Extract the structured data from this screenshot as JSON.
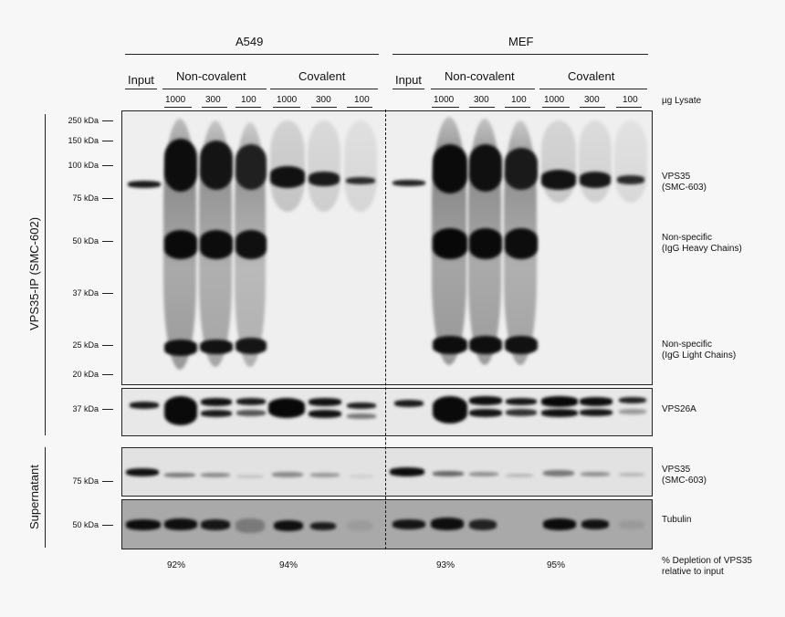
{
  "groups": {
    "a549": "A549",
    "mef": "MEF"
  },
  "conditions": {
    "input": "Input",
    "noncovalent": "Non-covalent",
    "covalent": "Covalent"
  },
  "amounts": [
    "1000",
    "300",
    "100"
  ],
  "amount_unit": "µg Lysate",
  "row_labels": {
    "ip": "VPS35-IP (SMC-602)",
    "supernatant": "Supernatant"
  },
  "mw_markers": {
    "kda250": "250 kDa",
    "kda150": "150 kDa",
    "kda100": "100 kDa",
    "kda75": "75 kDa",
    "kda50": "50 kDa",
    "kda37": "37 kDa",
    "kda25": "25 kDa",
    "kda20": "20 kDa",
    "vps26_37": "37 kDa",
    "sup_75": "75 kDa",
    "sup_50": "50 kDa"
  },
  "band_labels": {
    "vps35_line1": "VPS35",
    "vps35_line2": "(SMC-603)",
    "heavy_line1": "Non-specific",
    "heavy_line2": "(IgG Heavy Chains)",
    "light_line1": "Non-specific",
    "light_line2": "(IgG Light Chains)",
    "vps26a": "VPS26A",
    "sup_vps35_line1": "VPS35",
    "sup_vps35_line2": "(SMC-603)",
    "tubulin": "Tubulin"
  },
  "depletion": {
    "values": [
      "92%",
      "94%",
      "93%",
      "95%"
    ],
    "label_line1": "% Depletion of VPS35",
    "label_line2": "relative to input"
  }
}
